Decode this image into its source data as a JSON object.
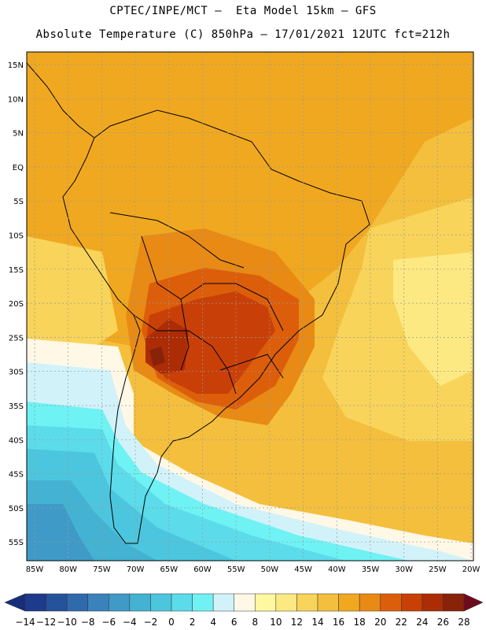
{
  "title_line1": "CPTEC/INPE/MCT –  Eta Model 15km – GFS",
  "title_line2": "Absolute Temperature (C) 850hPa – 17/01/2021 12UTC fct=212h",
  "lat_ticks": [
    "15N",
    "10N",
    "5N",
    "EQ",
    "5S",
    "10S",
    "15S",
    "20S",
    "25S",
    "30S",
    "35S",
    "40S",
    "45S",
    "50S",
    "55S"
  ],
  "lon_ticks": [
    "85W",
    "80W",
    "75W",
    "70W",
    "65W",
    "60W",
    "55W",
    "50W",
    "45W",
    "40W",
    "35W",
    "30W",
    "25W",
    "20W"
  ],
  "colorbar": {
    "labels": [
      "-14",
      "-12",
      "-10",
      "-8",
      "-6",
      "-4",
      "-2",
      "0",
      "2",
      "4",
      "6",
      "8",
      "10",
      "12",
      "14",
      "16",
      "18",
      "20",
      "22",
      "24",
      "26",
      "28"
    ],
    "colors": [
      "#1e3a8c",
      "#24539c",
      "#2f6aac",
      "#3a82bc",
      "#3f9ac8",
      "#44b2d2",
      "#4cc6de",
      "#5cdbea",
      "#6ff2f4",
      "#d2f2fa",
      "#fff8e6",
      "#fff8a0",
      "#fce982",
      "#f8d45a",
      "#f4bf3c",
      "#f0a820",
      "#e88a14",
      "#dc5e0a",
      "#c84008",
      "#ac2c06",
      "#882208"
    ],
    "under_color": "#162e7a",
    "over_color": "#6e0a1e"
  }
}
